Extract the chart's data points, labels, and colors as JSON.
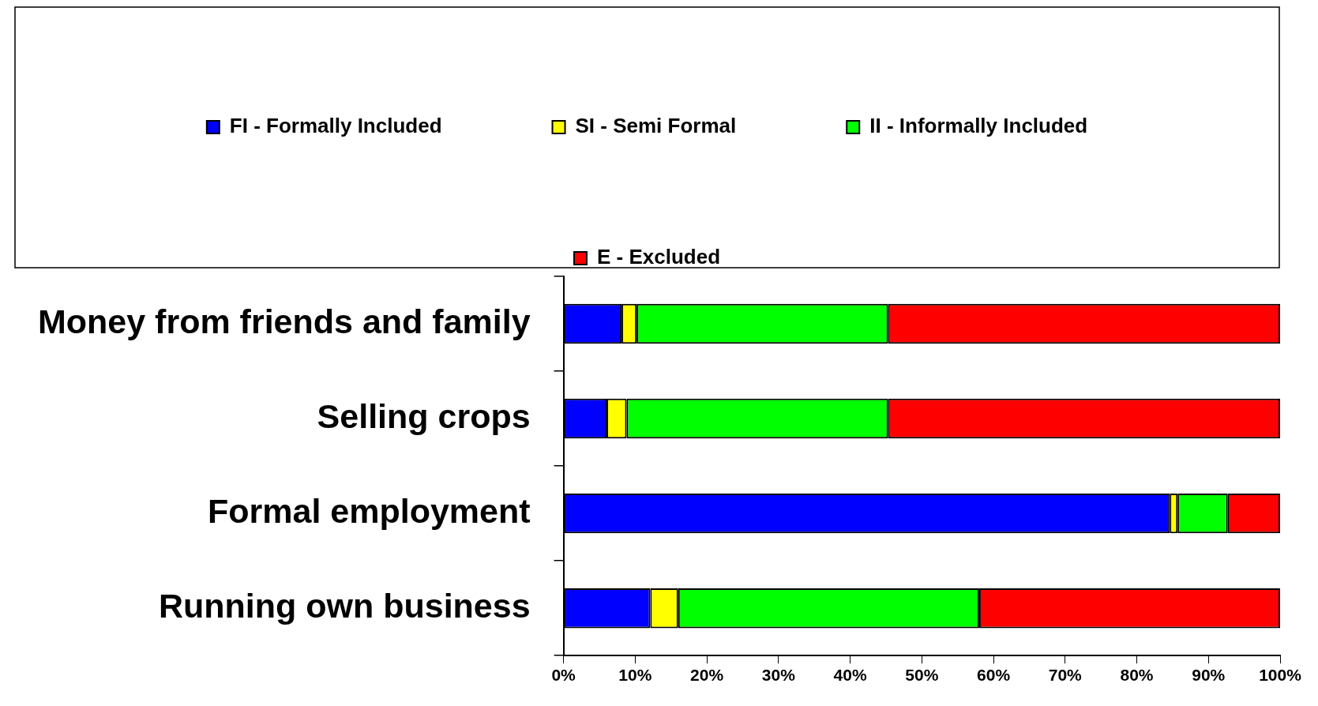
{
  "chart_data": {
    "type": "bar",
    "orientation": "horizontal",
    "stacked": true,
    "categories": [
      "Money from friends and family",
      "Selling crops",
      "Formal employment",
      "Running own business"
    ],
    "series": [
      {
        "name": "FI - Formally Included",
        "color": "#0000ff",
        "values": [
          8.1,
          6,
          84.6,
          12.1
        ]
      },
      {
        "name": "SI - Semi Formal",
        "color": "#ffff00",
        "values": [
          2.1,
          2.8,
          1.1,
          3.9
        ]
      },
      {
        "name": "II - Informally Included",
        "color": "#00ff00",
        "values": [
          35.1,
          36.5,
          7,
          42
        ]
      },
      {
        "name": "E - Excluded",
        "color": "#ff0000",
        "values": [
          54.7,
          54.7,
          7.3,
          42
        ]
      }
    ],
    "xlim": [
      0,
      100
    ],
    "xticks": [
      {
        "value": 0,
        "label": "0%"
      },
      {
        "value": 10,
        "label": "10%"
      },
      {
        "value": 20,
        "label": "20%"
      },
      {
        "value": 30,
        "label": "30%"
      },
      {
        "value": 40,
        "label": "40%"
      },
      {
        "value": 50,
        "label": "50%"
      },
      {
        "value": 60,
        "label": "60%"
      },
      {
        "value": 70,
        "label": "70%"
      },
      {
        "value": 80,
        "label": "80%"
      },
      {
        "value": 90,
        "label": "90%"
      },
      {
        "value": 100,
        "label": "100%"
      }
    ],
    "grid": false,
    "legend": "top"
  }
}
